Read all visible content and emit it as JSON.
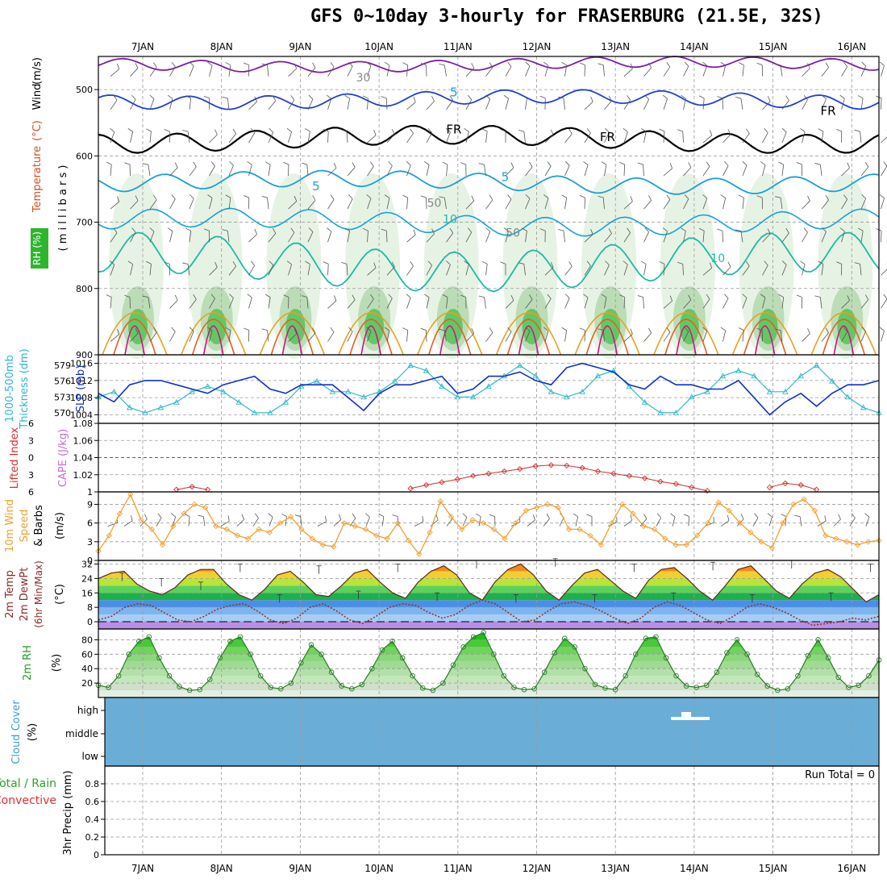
{
  "title": "GFS 0~10day 3-hourly for FRASERBURG (21.5E, 32S)",
  "day_labels": [
    "7JAN",
    "8JAN",
    "9JAN",
    "10JAN",
    "11JAN",
    "12JAN",
    "13JAN",
    "14JAN",
    "15JAN",
    "16JAN"
  ],
  "colors": {
    "panel_border": "#000000",
    "grid": "#999999",
    "rh_green_light": "#e3f2e1",
    "rh_green_mid": "#b6d9b1",
    "rh_green_dark": "#5cc35c",
    "temp_purple": "#7a1fa8",
    "temp_blue": "#2040d0",
    "temp_cyan": "#1aa0d8",
    "temp_teal": "#1fb8a8",
    "temp_orange": "#e8a020",
    "temp_red_orange": "#e06020",
    "temp_magenta": "#d01080",
    "slp_line": "#1030c8",
    "thickness_line": "#30b8c8",
    "lifted_index": "#d03030",
    "wind_speed": "#f0a030",
    "barbs": "#555555",
    "rh2m": "#1aa01a",
    "cloud_fill": "#6aaed8",
    "precip_total": "#2ca02c",
    "precip_conv": "#e03030",
    "cape": "#c070d0"
  },
  "chart_data": [
    {
      "panel": "upper-air",
      "type": "heatmap",
      "ylabel_parts": [
        "RH (%)",
        "Temperature",
        "(°C)",
        "Wind",
        "(m/s)"
      ],
      "yunits": "( m i l l i b a r s )",
      "ylim": [
        900,
        450
      ],
      "yticks": [
        900,
        800,
        700,
        600,
        500
      ],
      "contour_labels": [
        {
          "text": "5",
          "day": 3.95,
          "p": 510
        },
        {
          "text": "5",
          "day": 2.2,
          "p": 652
        },
        {
          "text": "5",
          "day": 4.6,
          "p": 638
        },
        {
          "text": "10",
          "day": 3.9,
          "p": 701
        },
        {
          "text": "10",
          "day": 7.3,
          "p": 760
        },
        {
          "text": "FR",
          "day": 3.95,
          "p": 566
        },
        {
          "text": "FR",
          "day": 5.9,
          "p": 578
        },
        {
          "text": "FR",
          "day": 8.7,
          "p": 538
        },
        {
          "text": "30",
          "day": 2.8,
          "p": 488
        },
        {
          "text": "50",
          "day": 3.7,
          "p": 677
        },
        {
          "text": "50",
          "day": 4.7,
          "p": 722
        }
      ]
    },
    {
      "panel": "slp-thickness",
      "type": "line",
      "ylabel_left": [
        "1000-500mb",
        "Thickness (dm)"
      ],
      "ylabel_right": "SLP (mb)",
      "thickness_ticks": [
        570,
        573,
        576,
        579
      ],
      "slp_ticks": [
        1004,
        1008,
        1012,
        1016
      ],
      "ylim_slp": [
        1002,
        1018
      ],
      "series": [
        {
          "name": "SLP (mb)",
          "values": [
            1009,
            1007,
            1011,
            1012,
            1012,
            1011,
            1010,
            1009,
            1011,
            1012,
            1013,
            1010,
            1009,
            1011,
            1011,
            1011,
            1008,
            1005,
            1009,
            1011,
            1011,
            1012,
            1013,
            1009,
            1010,
            1013,
            1013,
            1014,
            1012,
            1011,
            1015,
            1016,
            1015,
            1014,
            1011,
            1010,
            1013,
            1011,
            1011,
            1010,
            1010,
            1012,
            1008,
            1004,
            1007,
            1009,
            1006,
            1009,
            1011,
            1011,
            1012
          ]
        },
        {
          "name": "Thickness (dm)",
          "values": [
            573,
            574,
            571,
            570,
            571,
            572,
            574,
            575,
            574,
            572,
            570,
            570,
            572,
            575,
            576,
            574,
            574,
            573,
            574,
            576,
            579,
            578,
            575,
            573,
            573,
            575,
            577,
            579,
            577,
            574,
            573,
            574,
            577,
            578,
            575,
            572,
            570,
            570,
            573,
            574,
            577,
            578,
            577,
            574,
            574,
            577,
            579,
            576,
            573,
            571,
            570
          ]
        }
      ]
    },
    {
      "panel": "stability",
      "type": "line",
      "ylabel_left": "Lifted Index",
      "ylabel_right": "CAPE (J/kg)",
      "li_ticks": [
        -6,
        -3,
        0,
        3,
        6
      ],
      "li_tick_labels": [
        "6",
        "3",
        "0",
        "3",
        "6"
      ],
      "cape_ticks": [
        1,
        1.02,
        1.04,
        1.06,
        1.08
      ],
      "series": [
        {
          "name": "Lifted Index",
          "values": [
            6,
            6,
            6,
            6,
            6.6,
            5.6,
            5.1,
            5.6,
            6,
            6,
            6,
            6,
            6,
            6,
            6,
            6,
            6,
            6,
            6,
            6,
            5.4,
            4.8,
            4.3,
            3.8,
            3.2,
            2.8,
            2.4,
            2.0,
            1.5,
            1.3,
            1.4,
            1.8,
            2.4,
            2.8,
            3.2,
            3.6,
            4.2,
            4.6,
            5.2,
            5.8,
            6,
            6,
            6,
            5.2,
            4.5,
            4.8,
            5.6,
            6,
            6,
            6,
            6
          ]
        }
      ]
    },
    {
      "panel": "wind10m",
      "type": "line",
      "ylabel_left": [
        "10m Wind",
        "Speed",
        "& Barbs"
      ],
      "yunits": "(m/s)",
      "ylim": [
        0,
        11
      ],
      "yticks": [
        0,
        3,
        6,
        9
      ],
      "series": [
        {
          "name": "10m Wind Speed",
          "values": [
            1.5,
            4,
            7.5,
            10.6,
            6.5,
            5,
            2.5,
            5.5,
            7.5,
            9,
            8.5,
            5.5,
            5,
            4,
            3.5,
            5,
            4.5,
            6,
            7,
            5,
            3.5,
            2.5,
            2.2,
            6,
            5.5,
            5,
            4,
            3.5,
            6,
            3.2,
            1,
            4.5,
            9.5,
            7,
            5,
            6.5,
            6,
            5,
            3.5,
            6,
            8,
            8.5,
            9,
            8.5,
            5,
            5,
            4,
            2.5,
            6,
            9,
            7.5,
            5.5,
            5,
            3.5,
            2.5,
            2.5,
            4,
            6,
            9.3,
            8,
            6,
            4.5,
            3,
            2,
            6,
            9,
            9.8,
            8,
            4,
            3.5,
            3,
            2.5,
            3,
            3.2
          ]
        }
      ]
    },
    {
      "panel": "temp2m",
      "type": "area",
      "ylabel_left": [
        "2m Temp",
        "2m DewPt",
        "(6hr Min/Max)"
      ],
      "yunits": "(°C)",
      "ylim": [
        -4,
        34
      ],
      "yticks": [
        0,
        8,
        16,
        24,
        32
      ],
      "series": [
        {
          "name": "2m Temp",
          "values": [
            24,
            27,
            28,
            21,
            17,
            15,
            19,
            26,
            29,
            29,
            21,
            15,
            12,
            18,
            26,
            28,
            22,
            15,
            14,
            20,
            27,
            29,
            22,
            16,
            13,
            22,
            28,
            31,
            26,
            16,
            12,
            22,
            29,
            32,
            26,
            17,
            12,
            20,
            27,
            29,
            23,
            17,
            13,
            23,
            29,
            30,
            24,
            17,
            12,
            20,
            29,
            31,
            24,
            17,
            13,
            21,
            27,
            29,
            25,
            18,
            11,
            15
          ]
        },
        {
          "name": "2m DewPt",
          "values": [
            1,
            3,
            8,
            10,
            9,
            5,
            1,
            0,
            3,
            7,
            9,
            10,
            6,
            1,
            -1,
            2,
            8,
            10,
            6,
            1,
            -1,
            3,
            8,
            10,
            9,
            5,
            2,
            4,
            9,
            12,
            10,
            5,
            0,
            1,
            6,
            10,
            11,
            9,
            6,
            2,
            -1,
            2,
            8,
            11,
            9,
            5,
            1,
            -1,
            3,
            8,
            10,
            8,
            5,
            1,
            -2,
            -1,
            0,
            2,
            1,
            3
          ]
        }
      ]
    },
    {
      "panel": "rh2m",
      "type": "area",
      "ylabel_left": "2m RH",
      "yunits": "(%)",
      "ylim": [
        0,
        95
      ],
      "yticks": [
        20,
        40,
        60,
        80
      ],
      "series": [
        {
          "name": "2m RH",
          "values": [
            17,
            14,
            30,
            60,
            78,
            84,
            55,
            30,
            15,
            10,
            11,
            25,
            55,
            78,
            84,
            60,
            30,
            14,
            12,
            20,
            48,
            73,
            60,
            35,
            16,
            12,
            18,
            40,
            66,
            78,
            55,
            30,
            13,
            10,
            20,
            45,
            70,
            84,
            90,
            60,
            30,
            14,
            11,
            12,
            35,
            62,
            82,
            70,
            40,
            18,
            13,
            11,
            30,
            60,
            82,
            84,
            55,
            30,
            16,
            14,
            17,
            35,
            62,
            80,
            60,
            32,
            16,
            10,
            12,
            30,
            58,
            80,
            55,
            28,
            14,
            17,
            30,
            52
          ]
        }
      ]
    },
    {
      "panel": "cloud",
      "type": "area",
      "ylabel_left": "Cloud Cover",
      "yunits": "(%)",
      "ytick_labels": [
        "high",
        "middle",
        "low"
      ],
      "note": ""
    },
    {
      "panel": "precip",
      "type": "bar",
      "ylabel_left": [
        "Total / Rain",
        "Convective"
      ],
      "yunits": "3hr Precip (mm)",
      "ylim": [
        0,
        1
      ],
      "yticks": [
        0,
        0.2,
        0.4,
        0.6,
        0.8
      ],
      "run_total": "Run Total = 0",
      "values": []
    }
  ]
}
